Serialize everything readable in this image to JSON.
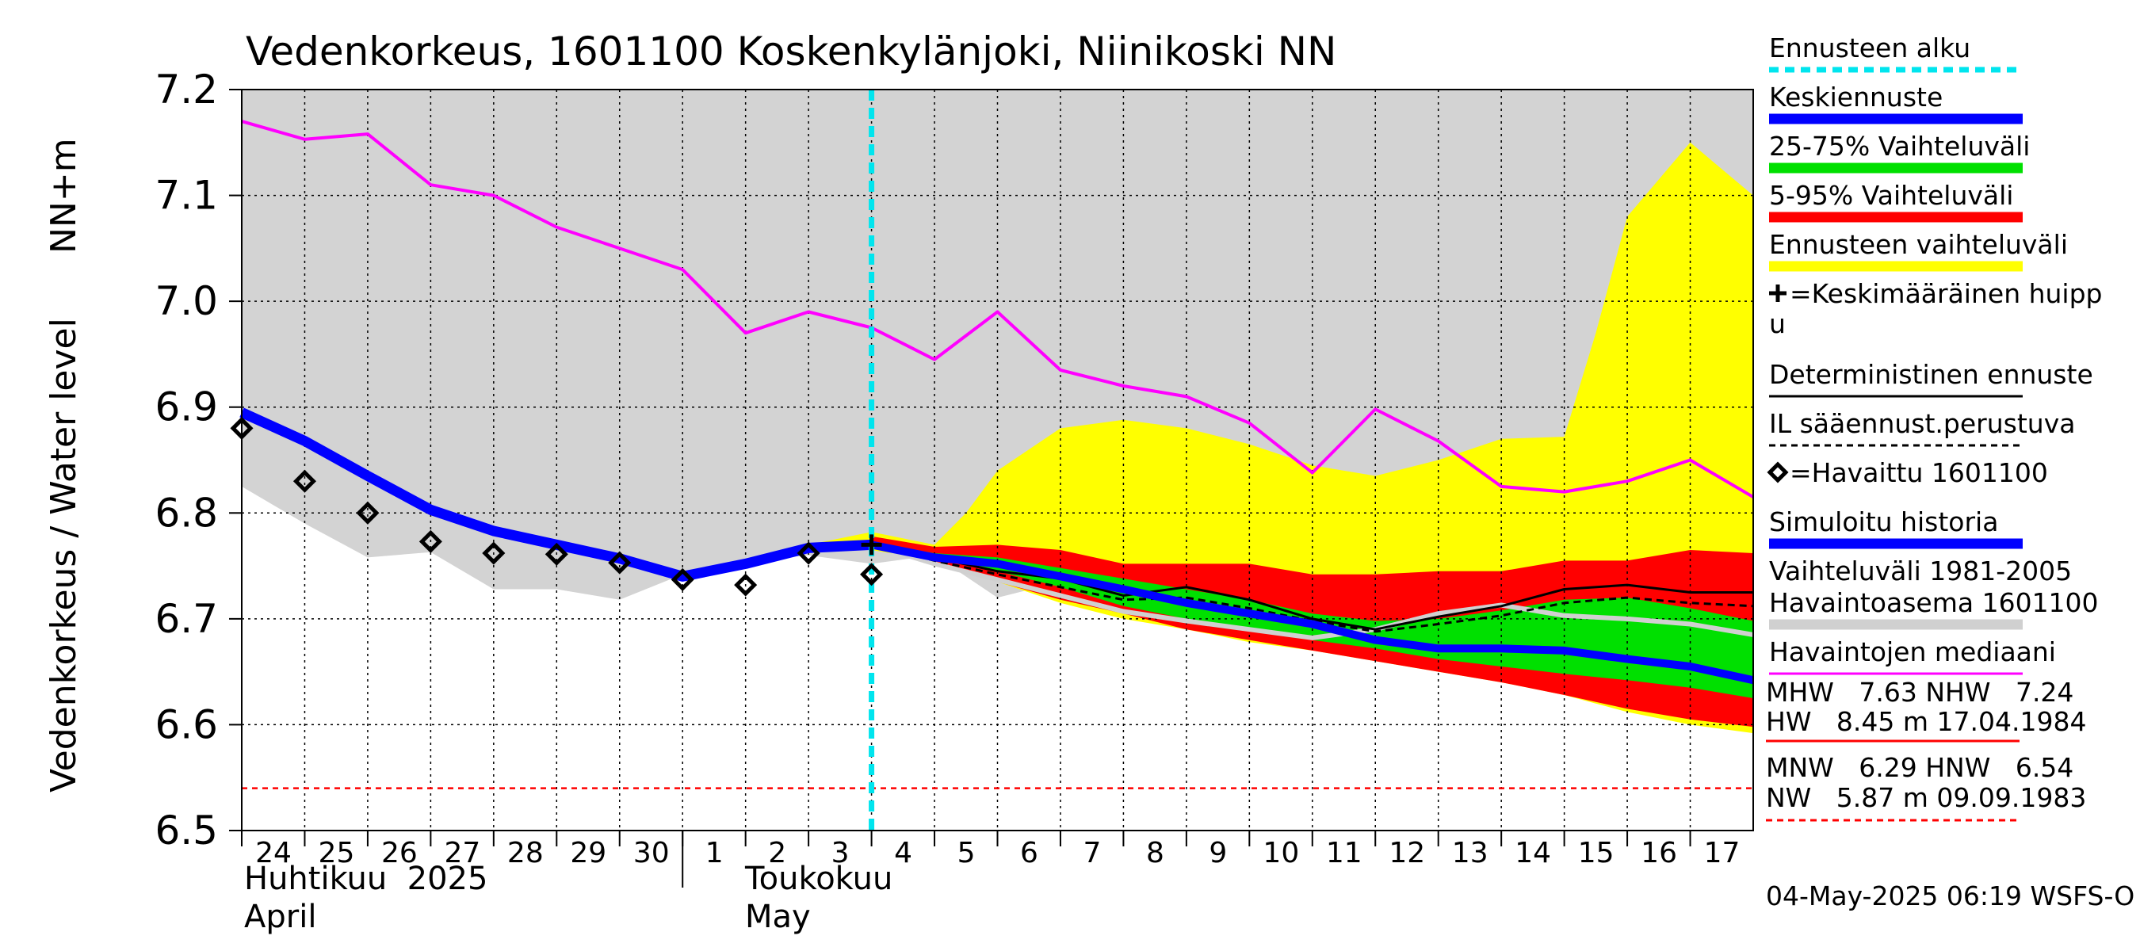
{
  "chart_data": {
    "type": "line",
    "title": "Vedenkorkeus, 1601100 Koskenkylänjoki, Niinikoski NN",
    "ylabel_left": "Vedenkorkeus / Water level",
    "ylabel_unit": "NN+m",
    "ylim": [
      6.5,
      7.2
    ],
    "y_ticks": [
      "6.5",
      "6.6",
      "6.7",
      "6.8",
      "6.9",
      "7.0",
      "7.1",
      "7.2"
    ],
    "x_range": [
      "2025-04-24",
      "2025-05-18"
    ],
    "x_tick_labels": [
      "24",
      "25",
      "26",
      "27",
      "28",
      "29",
      "30",
      "1",
      "2",
      "3",
      "4",
      "5",
      "6",
      "7",
      "8",
      "9",
      "10",
      "11",
      "12",
      "13",
      "14",
      "15",
      "16",
      "17"
    ],
    "month_labels": [
      {
        "fi": "Huhtikuu  2025",
        "en": "April"
      },
      {
        "fi": "Toukokuu",
        "en": "May"
      }
    ],
    "forecast_start": "2025-05-04",
    "grid": true,
    "history_range": {
      "name": "Vaihteluväli 1981-2005",
      "upper": [
        7.2,
        7.2,
        7.2,
        7.2,
        7.2,
        7.2,
        7.2,
        7.2,
        7.2,
        7.2,
        7.2,
        7.2,
        7.2,
        7.2,
        7.2,
        7.2,
        7.2,
        7.2,
        7.2,
        7.2,
        7.2,
        7.2,
        7.2,
        7.2,
        7.2
      ],
      "lower": [
        6.825,
        6.79,
        6.758,
        6.763,
        6.728,
        6.728,
        6.718,
        6.742,
        6.755,
        6.76,
        6.752,
        6.76,
        6.72,
        6.735,
        6.725,
        6.72,
        6.705,
        6.7,
        6.695,
        6.7,
        6.705,
        6.705,
        6.7,
        6.7,
        6.68
      ]
    },
    "forecast_band_full": {
      "name": "Ennusteen vaihteluväli",
      "x": [
        "2025-05-03",
        "2025-05-04",
        "2025-05-05",
        "2025-05-05 12:00",
        "2025-05-06",
        "2025-05-06 12:00",
        "2025-05-07",
        "2025-05-08",
        "2025-05-09",
        "2025-05-10",
        "2025-05-11",
        "2025-05-12",
        "2025-05-13",
        "2025-05-14",
        "2025-05-15",
        "2025-05-15 12:00",
        "2025-05-16",
        "2025-05-17",
        "2025-05-18"
      ],
      "upper": [
        6.77,
        6.782,
        6.77,
        6.8,
        6.84,
        6.86,
        6.88,
        6.888,
        6.88,
        6.865,
        6.845,
        6.835,
        6.85,
        6.87,
        6.872,
        6.97,
        7.08,
        7.15,
        7.1
      ],
      "lower": [
        6.77,
        6.765,
        6.755,
        6.745,
        6.735,
        6.725,
        6.715,
        6.7,
        6.69,
        6.678,
        6.67,
        6.66,
        6.65,
        6.64,
        6.628,
        6.62,
        6.612,
        6.6,
        6.592
      ]
    },
    "band_5_95": {
      "name": "5-95% Vaihteluväli",
      "x": [
        "2025-05-04",
        "2025-05-05",
        "2025-05-06",
        "2025-05-07",
        "2025-05-08",
        "2025-05-09",
        "2025-05-10",
        "2025-05-11",
        "2025-05-12",
        "2025-05-13",
        "2025-05-14",
        "2025-05-15",
        "2025-05-16",
        "2025-05-17",
        "2025-05-18"
      ],
      "upper": [
        6.778,
        6.768,
        6.77,
        6.765,
        6.752,
        6.752,
        6.752,
        6.742,
        6.742,
        6.745,
        6.745,
        6.755,
        6.755,
        6.765,
        6.762
      ],
      "lower": [
        6.768,
        6.752,
        6.735,
        6.718,
        6.705,
        6.69,
        6.68,
        6.67,
        6.66,
        6.65,
        6.64,
        6.628,
        6.615,
        6.605,
        6.598
      ]
    },
    "band_25_75": {
      "name": "25-75% Vaihteluväli",
      "x": [
        "2025-05-04",
        "2025-05-05",
        "2025-05-06",
        "2025-05-07",
        "2025-05-08",
        "2025-05-09",
        "2025-05-10",
        "2025-05-11",
        "2025-05-12",
        "2025-05-13",
        "2025-05-14",
        "2025-05-15",
        "2025-05-16",
        "2025-05-17",
        "2025-05-18"
      ],
      "upper": [
        6.772,
        6.762,
        6.758,
        6.748,
        6.738,
        6.728,
        6.718,
        6.705,
        6.698,
        6.7,
        6.708,
        6.718,
        6.72,
        6.71,
        6.698
      ],
      "lower": [
        6.77,
        6.758,
        6.745,
        6.73,
        6.712,
        6.7,
        6.69,
        6.68,
        6.672,
        6.662,
        6.655,
        6.648,
        6.642,
        6.635,
        6.625
      ]
    },
    "series": [
      {
        "name": "Havaintojen mediaani",
        "color": "#ff00ff",
        "x": [
          "2025-04-24",
          "2025-04-25",
          "2025-04-26",
          "2025-04-27",
          "2025-04-28",
          "2025-04-29",
          "2025-04-30",
          "2025-05-01",
          "2025-05-02",
          "2025-05-03",
          "2025-05-04",
          "2025-05-05",
          "2025-05-06",
          "2025-05-07",
          "2025-05-08",
          "2025-05-09",
          "2025-05-10",
          "2025-05-11",
          "2025-05-12",
          "2025-05-13",
          "2025-05-14",
          "2025-05-15",
          "2025-05-16",
          "2025-05-17",
          "2025-05-18"
        ],
        "values": [
          7.17,
          7.153,
          7.158,
          7.11,
          7.1,
          7.07,
          7.05,
          7.03,
          6.97,
          6.99,
          6.975,
          6.945,
          6.99,
          6.935,
          6.92,
          6.91,
          6.885,
          6.838,
          6.898,
          6.868,
          6.825,
          6.82,
          6.83,
          6.85,
          6.815
        ]
      },
      {
        "name": "Simuloitu historia",
        "color": "#0000ff",
        "x": [
          "2025-04-24",
          "2025-04-25",
          "2025-04-26",
          "2025-04-27",
          "2025-04-28",
          "2025-04-29",
          "2025-04-30",
          "2025-05-01",
          "2025-05-02",
          "2025-05-03",
          "2025-05-04"
        ],
        "values": [
          6.895,
          6.868,
          6.835,
          6.803,
          6.783,
          6.77,
          6.757,
          6.74,
          6.752,
          6.767,
          6.77
        ]
      },
      {
        "name": "Keskiennuste",
        "color": "#0000ff",
        "x": [
          "2025-05-04",
          "2025-05-05",
          "2025-05-06",
          "2025-05-07",
          "2025-05-08",
          "2025-05-09",
          "2025-05-10",
          "2025-05-11",
          "2025-05-12",
          "2025-05-13",
          "2025-05-14",
          "2025-05-15",
          "2025-05-16",
          "2025-05-17",
          "2025-05-18"
        ],
        "values": [
          6.77,
          6.758,
          6.752,
          6.74,
          6.728,
          6.715,
          6.705,
          6.695,
          6.68,
          6.672,
          6.672,
          6.67,
          6.662,
          6.655,
          6.642
        ]
      },
      {
        "name": "Havaintoasema 1601100",
        "color": "#d0d0d0",
        "x": [
          "2025-05-04",
          "2025-05-05",
          "2025-05-06",
          "2025-05-07",
          "2025-05-08",
          "2025-05-09",
          "2025-05-10",
          "2025-05-11",
          "2025-05-12",
          "2025-05-13",
          "2025-05-14",
          "2025-05-15",
          "2025-05-16",
          "2025-05-17",
          "2025-05-18"
        ],
        "values": [
          6.77,
          6.752,
          6.737,
          6.722,
          6.707,
          6.698,
          6.69,
          6.682,
          6.69,
          6.705,
          6.713,
          6.703,
          6.7,
          6.695,
          6.685
        ]
      },
      {
        "name": "Deterministinen ennuste",
        "color": "#000000",
        "x": [
          "2025-05-04",
          "2025-05-05",
          "2025-05-06",
          "2025-05-07",
          "2025-05-08",
          "2025-05-09",
          "2025-05-10",
          "2025-05-11",
          "2025-05-12",
          "2025-05-13",
          "2025-05-14",
          "2025-05-15",
          "2025-05-16",
          "2025-05-17",
          "2025-05-18"
        ],
        "values": [
          6.77,
          6.758,
          6.745,
          6.738,
          6.722,
          6.73,
          6.718,
          6.7,
          6.69,
          6.702,
          6.712,
          6.728,
          6.732,
          6.725,
          6.725
        ]
      },
      {
        "name": "IL sääennust.perustuva",
        "color": "#000000",
        "x": [
          "2025-05-04",
          "2025-05-05",
          "2025-05-06",
          "2025-05-07",
          "2025-05-08",
          "2025-05-09",
          "2025-05-10",
          "2025-05-11",
          "2025-05-12",
          "2025-05-13",
          "2025-05-14",
          "2025-05-15",
          "2025-05-16",
          "2025-05-17",
          "2025-05-18"
        ],
        "values": [
          6.77,
          6.755,
          6.742,
          6.73,
          6.718,
          6.72,
          6.71,
          6.698,
          6.688,
          6.695,
          6.703,
          6.715,
          6.72,
          6.715,
          6.712
        ]
      }
    ],
    "observed": {
      "name": "=Havaittu 1601100",
      "x": [
        "2025-04-24",
        "2025-04-25",
        "2025-04-26",
        "2025-04-27",
        "2025-04-28",
        "2025-04-29",
        "2025-04-30",
        "2025-05-01",
        "2025-05-02",
        "2025-05-03",
        "2025-05-04"
      ],
      "values": [
        6.88,
        6.83,
        6.8,
        6.773,
        6.762,
        6.761,
        6.753,
        6.737,
        6.732,
        6.762,
        6.742
      ]
    },
    "mean_peak": {
      "name": "=Keskimääräinen huippu",
      "x": "2025-05-04",
      "value": 6.77
    },
    "reference_line_value": 6.54,
    "legend": [
      {
        "label": "Ennusteen alku",
        "color": "#00e5ee",
        "style": "dotted"
      },
      {
        "label": "Keskiennuste",
        "color": "#0000ff",
        "style": "thick"
      },
      {
        "label": "25-75% Vaihteluväli",
        "color": "#00e000",
        "style": "thick"
      },
      {
        "label": "5-95% Vaihteluväli",
        "color": "#ff0000",
        "style": "thick"
      },
      {
        "label": "Ennusteen vaihteluväli",
        "color": "#ffff00",
        "style": "thick"
      },
      {
        "label": "=Keskimääräinen huipp",
        "label2": "u",
        "color": "#000000",
        "style": "none"
      },
      {
        "label": "Deterministinen ennuste",
        "color": "#000000",
        "style": "thin"
      },
      {
        "label": "IL sääennust.perustuva",
        "color": "#000000",
        "style": "dashed"
      },
      {
        "label": "=Havaittu 1601100",
        "color": "#000000",
        "style": "none"
      },
      {
        "label": "Simuloitu historia",
        "color": "#0000ff",
        "style": "thick"
      },
      {
        "label": "Vaihteluväli 1981-2005",
        "label2": " Havaintoasema 1601100",
        "color": "#d0d0d0",
        "style": "thick"
      },
      {
        "label": "Havaintojen mediaani",
        "color": "#ff00ff",
        "style": "thin"
      }
    ],
    "stats": {
      "line1": "MHW   7.63 NHW   7.24",
      "line2": "HW   8.45 m 17.04.1984",
      "line3": "MNW   6.29 HNW   6.54",
      "line4": "NW   5.87 m 09.09.1983"
    },
    "timestamp": "04-May-2025 06:19 WSFS-O"
  }
}
